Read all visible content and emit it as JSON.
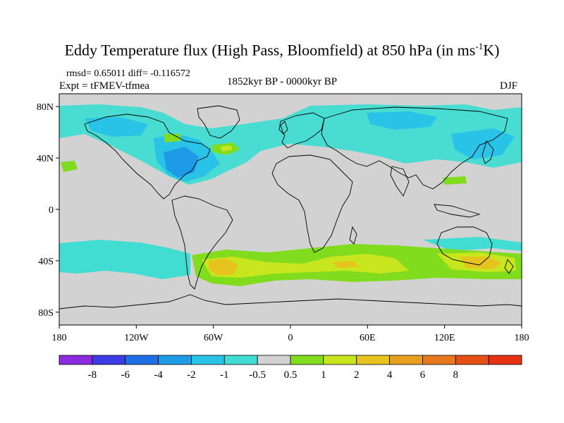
{
  "title": {
    "main": "Eddy Temperature flux (High Pass, Bloomfield) at 850 hPa (in ms",
    "sup": "-1",
    "end": "K)"
  },
  "stats": "rmsd= 0.65011 diff= -0.116572",
  "expt": "Expt = tFMEV-tfmea",
  "period": "1852kyr BP - 0000kyr BP",
  "season": "DJF",
  "map": {
    "background_color": "#d2d2d2",
    "lat_ticks": [
      {
        "value": 80,
        "label": "80N"
      },
      {
        "value": 40,
        "label": "40N"
      },
      {
        "value": 0,
        "label": "0"
      },
      {
        "value": -40,
        "label": "40S"
      },
      {
        "value": -80,
        "label": "80S"
      }
    ],
    "lon_ticks": [
      {
        "value": -180,
        "label": "180"
      },
      {
        "value": -120,
        "label": "120W"
      },
      {
        "value": -60,
        "label": "60W"
      },
      {
        "value": 0,
        "label": "0"
      },
      {
        "value": 60,
        "label": "60E"
      },
      {
        "value": 120,
        "label": "120E"
      },
      {
        "value": 180,
        "label": "180"
      }
    ]
  },
  "colorbar": {
    "colors": [
      "#8c2be0",
      "#3c3ce6",
      "#1e6ee6",
      "#1e9be6",
      "#28c3e6",
      "#41dcd2",
      "#d2d2d2",
      "#82dc1e",
      "#c8e61e",
      "#e6c31e",
      "#e6a01e",
      "#e6781e",
      "#e65014",
      "#e63214"
    ],
    "labels": [
      "-8",
      "-6",
      "-4",
      "-2",
      "-1",
      "-0.5",
      "0.5",
      "1",
      "2",
      "4",
      "6",
      "8"
    ]
  },
  "chart_data": {
    "type": "heatmap",
    "region_shading": [
      {
        "region": "Southern Ocean storm track 40S-60S, 70W-170E",
        "level": "1 to 2"
      },
      {
        "region": "South Atlantic 40S, 60W",
        "level": "2 to 4"
      },
      {
        "region": "South of Australia 40S, 150E",
        "level": "2 to 4"
      },
      {
        "region": "North America / North Atlantic 30N-50N",
        "level": "-4 to -1"
      },
      {
        "region": "North Pacific 40N-60N",
        "level": "-1 to -0.5"
      },
      {
        "region": "Eurasia 50N-70N",
        "level": "-1 to -0.5"
      },
      {
        "region": "South Pacific 40S-50S, 180-90W",
        "level": "-1 to -0.5"
      }
    ]
  }
}
